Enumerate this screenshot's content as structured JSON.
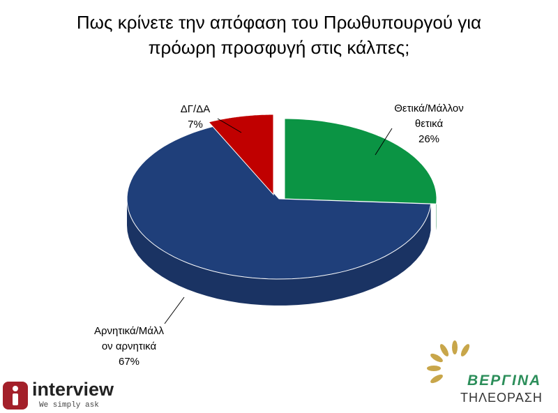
{
  "chart_data": {
    "type": "pie",
    "title_lines": [
      "Πως κρίνετε την απόφαση του Πρωθυπουργού για",
      "πρόωρη προσφυγή στις κάλπες;"
    ],
    "slices": [
      {
        "label_lines": [
          "Θετικά/Μάλλον",
          "θετικά"
        ],
        "value": 26,
        "value_label": "26%",
        "color": "#0b9444",
        "side_color": "#0a7a38"
      },
      {
        "label_lines": [
          "Αρνητικά/Μάλλ",
          "ον αρνητικά"
        ],
        "value": 67,
        "value_label": "67%",
        "color": "#1f3f7a",
        "side_color": "#1a3363"
      },
      {
        "label_lines": [
          "ΔΓ/ΔΑ"
        ],
        "value": 7,
        "value_label": "7%",
        "color": "#c00000",
        "side_color": "#8e0000"
      }
    ]
  },
  "logos": {
    "interview_name": "interview",
    "interview_tagline": "We simply ask",
    "vergina_name": "ΒΕΡΓΙΝΑ",
    "vergina_sub": "ΤΗΛΕΟΡΑΣΗ"
  }
}
